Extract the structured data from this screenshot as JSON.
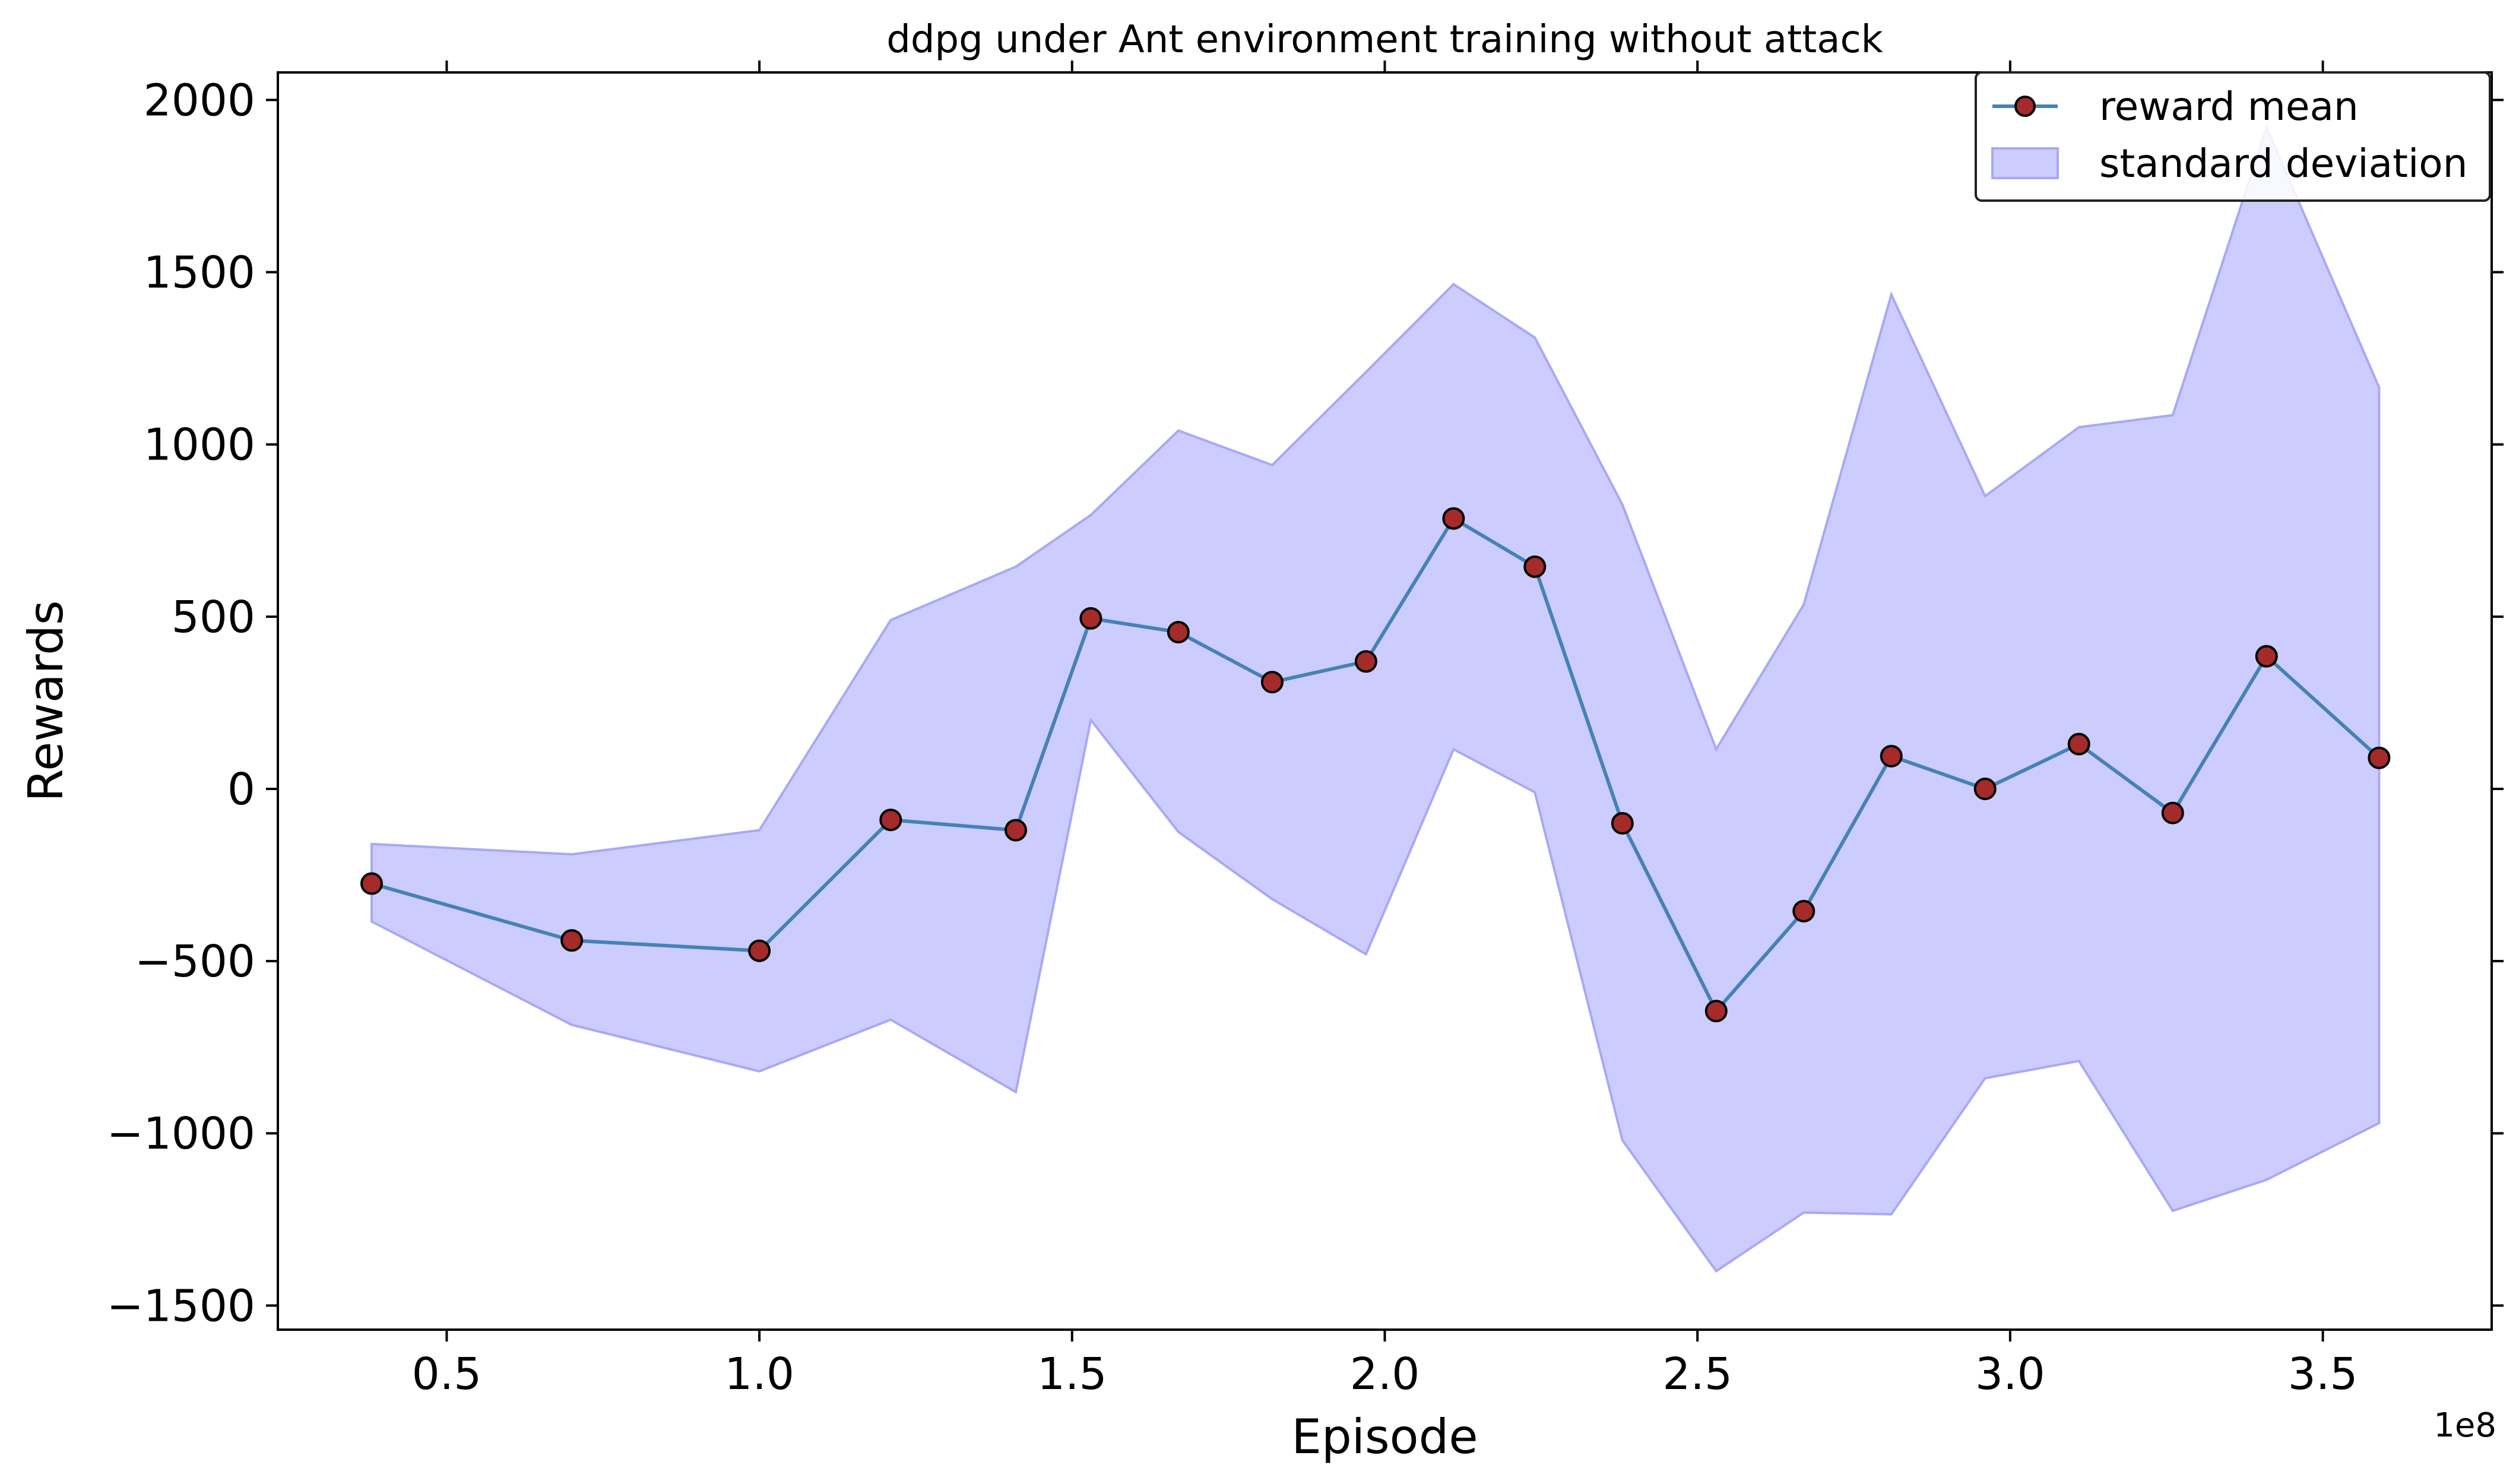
{
  "chart_data": {
    "type": "line",
    "title": "ddpg under Ant environment training without attack",
    "xlabel": "Episode",
    "ylabel": "Rewards",
    "x_offset_label": "1e8",
    "xlim": [
      0.23,
      3.77
    ],
    "ylim": [
      -1570,
      2080
    ],
    "x_ticks": [
      0.5,
      1.0,
      1.5,
      2.0,
      2.5,
      3.0,
      3.5
    ],
    "x_tick_labels": [
      "0.5",
      "1.0",
      "1.5",
      "2.0",
      "2.5",
      "3.0",
      "3.5"
    ],
    "y_ticks": [
      -1500,
      -1000,
      -500,
      0,
      500,
      1000,
      1500,
      2000
    ],
    "y_tick_labels": [
      "−1500",
      "−1000",
      "−500",
      "0",
      "500",
      "1000",
      "1500",
      "2000"
    ],
    "grid": false,
    "legend_position": "top-right",
    "x": [
      0.38,
      0.7,
      1.0,
      1.21,
      1.41,
      1.53,
      1.67,
      1.82,
      1.97,
      2.11,
      2.24,
      2.38,
      2.53,
      2.67,
      2.81,
      2.96,
      3.11,
      3.26,
      3.41,
      3.59
    ],
    "series": [
      {
        "name": "reward mean",
        "values": [
          -275,
          -440,
          -470,
          -90,
          -120,
          495,
          455,
          310,
          370,
          785,
          645,
          -100,
          -645,
          -355,
          95,
          0,
          130,
          -70,
          385,
          90
        ]
      },
      {
        "name": "standard deviation",
        "upper": [
          -160,
          -190,
          -120,
          490,
          645,
          795,
          1040,
          940,
          1210,
          1465,
          1310,
          825,
          115,
          535,
          1435,
          850,
          1050,
          1085,
          1920,
          1165
        ],
        "lower": [
          -385,
          -685,
          -820,
          -670,
          -880,
          200,
          -125,
          -320,
          -480,
          115,
          -10,
          -1020,
          -1400,
          -1230,
          -1235,
          -840,
          -790,
          -1225,
          -1135,
          -970
        ]
      }
    ],
    "colors": {
      "line": "#4682b4",
      "marker_fill": "#a52a2a",
      "marker_edge": "#000000",
      "band_fill": "#ccccff",
      "band_edge": "#a8a8f5"
    }
  }
}
